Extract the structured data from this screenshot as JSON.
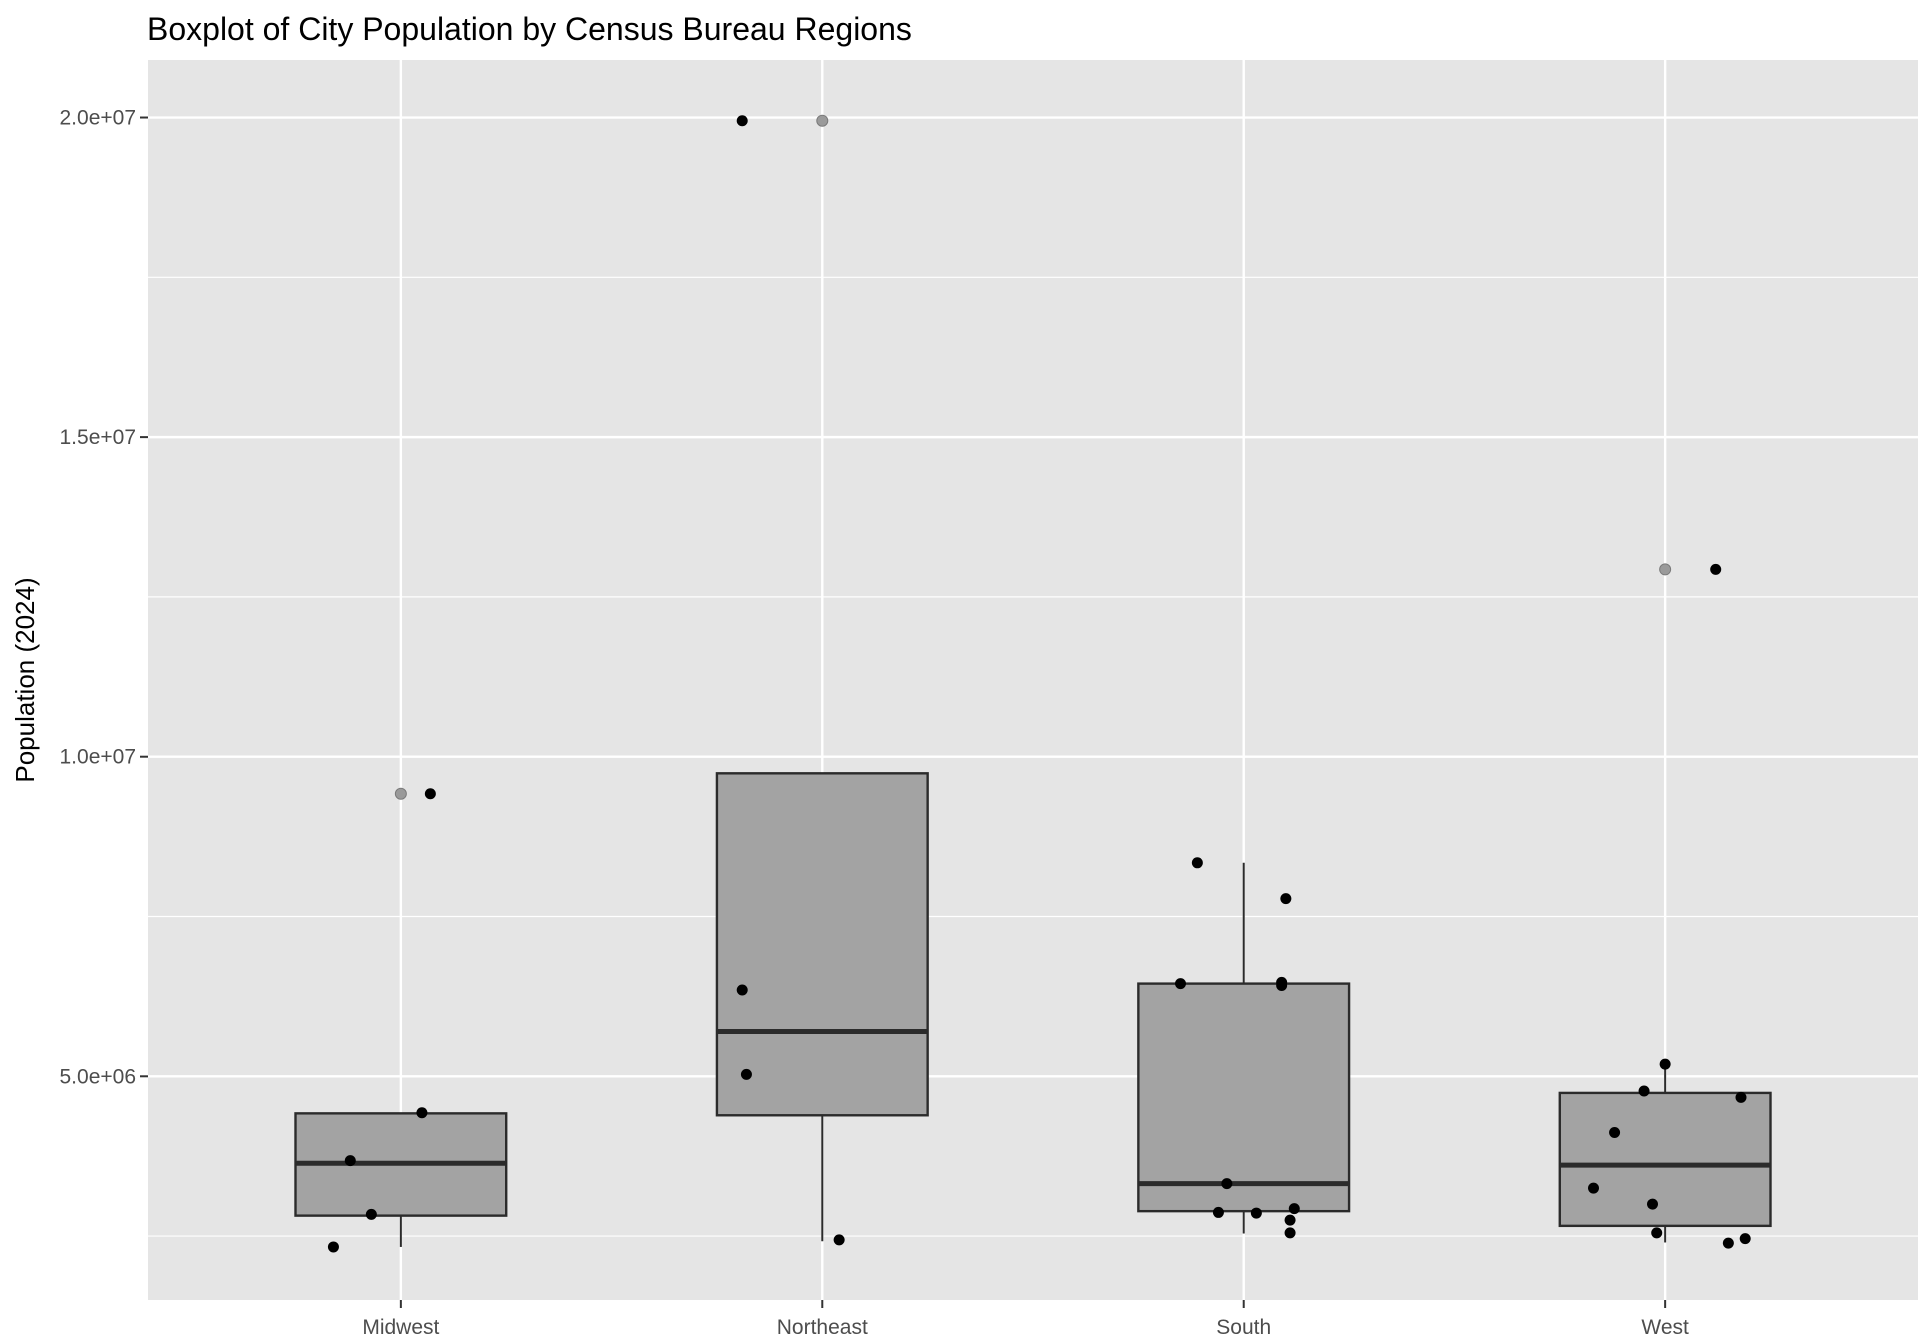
{
  "chart_data": {
    "type": "boxplot",
    "title": "Boxplot of City Population by Census Bureau Regions",
    "xlabel": "",
    "ylabel": "Population (2024)",
    "ylim": [
      1500000,
      20900000
    ],
    "yticks": [
      {
        "value": 5000000,
        "label": "5.0e+06"
      },
      {
        "value": 10000000,
        "label": "1.0e+07"
      },
      {
        "value": 15000000,
        "label": "1.5e+07"
      },
      {
        "value": 20000000,
        "label": "2.0e+07"
      }
    ],
    "grid": true,
    "categories": [
      "Midwest",
      "Northeast",
      "South",
      "West"
    ],
    "colors": {
      "panel": "#e5e5e5",
      "grid": "#ffffff",
      "box_fill": "#a3a3a3",
      "box_stroke": "#2b2b2b",
      "point": "#000000",
      "outlier": "#9a9a9a"
    },
    "boxes": [
      {
        "category": "Midwest",
        "whisker_low": 2330000,
        "q1": 2820000,
        "median": 3640000,
        "q3": 4420000,
        "whisker_high": 4420000,
        "outliers": [
          9420000
        ]
      },
      {
        "category": "Northeast",
        "whisker_low": 2420000,
        "q1": 4390000,
        "median": 5700000,
        "q3": 9740000,
        "whisker_high": 9740000,
        "outliers": [
          19950000
        ]
      },
      {
        "category": "South",
        "whisker_low": 2540000,
        "q1": 2890000,
        "median": 3320000,
        "q3": 6450000,
        "whisker_high": 8340000,
        "outliers": []
      },
      {
        "category": "West",
        "whisker_low": 2400000,
        "q1": 2660000,
        "median": 3610000,
        "q3": 4740000,
        "whisker_high": 5200000,
        "outliers": [
          12930000
        ]
      }
    ],
    "points": [
      {
        "category": "Midwest",
        "jitter": -0.16,
        "value": 2330000
      },
      {
        "category": "Midwest",
        "jitter": -0.07,
        "value": 2840000
      },
      {
        "category": "Midwest",
        "jitter": -0.12,
        "value": 3680000
      },
      {
        "category": "Midwest",
        "jitter": 0.05,
        "value": 4430000
      },
      {
        "category": "Midwest",
        "jitter": 0.07,
        "value": 9420000
      },
      {
        "category": "Northeast",
        "jitter": -0.19,
        "value": 19950000
      },
      {
        "category": "Northeast",
        "jitter": -0.19,
        "value": 6350000
      },
      {
        "category": "Northeast",
        "jitter": -0.18,
        "value": 5030000
      },
      {
        "category": "Northeast",
        "jitter": 0.04,
        "value": 2440000
      },
      {
        "category": "South",
        "jitter": -0.11,
        "value": 8340000
      },
      {
        "category": "South",
        "jitter": 0.1,
        "value": 7780000
      },
      {
        "category": "South",
        "jitter": -0.15,
        "value": 6450000
      },
      {
        "category": "South",
        "jitter": 0.09,
        "value": 6420000
      },
      {
        "category": "South",
        "jitter": 0.09,
        "value": 6470000
      },
      {
        "category": "South",
        "jitter": -0.04,
        "value": 3320000
      },
      {
        "category": "South",
        "jitter": -0.06,
        "value": 2870000
      },
      {
        "category": "South",
        "jitter": 0.03,
        "value": 2860000
      },
      {
        "category": "South",
        "jitter": 0.12,
        "value": 2930000
      },
      {
        "category": "South",
        "jitter": 0.11,
        "value": 2750000
      },
      {
        "category": "South",
        "jitter": 0.11,
        "value": 2550000
      },
      {
        "category": "West",
        "jitter": 0.12,
        "value": 12930000
      },
      {
        "category": "West",
        "jitter": 0.0,
        "value": 5190000
      },
      {
        "category": "West",
        "jitter": -0.05,
        "value": 4770000
      },
      {
        "category": "West",
        "jitter": 0.18,
        "value": 4670000
      },
      {
        "category": "West",
        "jitter": -0.12,
        "value": 4120000
      },
      {
        "category": "West",
        "jitter": -0.17,
        "value": 3250000
      },
      {
        "category": "West",
        "jitter": -0.03,
        "value": 3000000
      },
      {
        "category": "West",
        "jitter": -0.02,
        "value": 2550000
      },
      {
        "category": "West",
        "jitter": 0.15,
        "value": 2390000
      },
      {
        "category": "West",
        "jitter": 0.19,
        "value": 2460000
      }
    ]
  }
}
